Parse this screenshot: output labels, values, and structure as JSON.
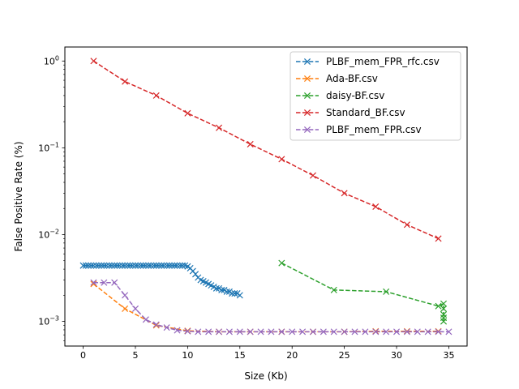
{
  "chart_data": {
    "type": "line",
    "title": "",
    "xlabel": "Size (Kb)",
    "ylabel": "False Positive Rate (%)",
    "xlim": [
      -1.75,
      36.75
    ],
    "ylim": [
      0.00052,
      1.45
    ],
    "y_scale": "log",
    "x_ticks": [
      0,
      5,
      10,
      15,
      20,
      25,
      30,
      35
    ],
    "y_ticks": [
      {
        "value": 0.001,
        "base": "10",
        "exp": "−3"
      },
      {
        "value": 0.01,
        "base": "10",
        "exp": "−2"
      },
      {
        "value": 0.1,
        "base": "10",
        "exp": "−1"
      },
      {
        "value": 1,
        "base": "10",
        "exp": "0"
      }
    ],
    "grid": false,
    "legend_position": "top-right",
    "marker": "x",
    "line_style": "dashed",
    "series": [
      {
        "name": "PLBF_mem_FPR_rfc.csv",
        "color": "#1f77b4",
        "x": [
          0,
          0.25,
          0.5,
          0.75,
          1,
          1.25,
          1.5,
          1.75,
          2,
          2.25,
          2.5,
          2.75,
          3,
          3.25,
          3.5,
          3.75,
          4,
          4.25,
          4.5,
          4.75,
          5,
          5.25,
          5.5,
          5.75,
          6,
          6.25,
          6.5,
          6.75,
          7,
          7.25,
          7.5,
          7.75,
          8,
          8.25,
          8.5,
          8.75,
          9,
          9.25,
          9.5,
          9.75,
          10,
          10.25,
          10.5,
          10.75,
          11,
          11.25,
          11.5,
          11.75,
          12,
          12.25,
          12.5,
          12.75,
          13,
          13.25,
          13.5,
          13.75,
          14,
          14.25,
          14.5,
          14.75,
          15
        ],
        "y": [
          0.0044,
          0.0044,
          0.0044,
          0.0044,
          0.0044,
          0.0044,
          0.0044,
          0.0044,
          0.0044,
          0.0044,
          0.0044,
          0.0044,
          0.0044,
          0.0044,
          0.0044,
          0.0044,
          0.0044,
          0.0044,
          0.0044,
          0.0044,
          0.0044,
          0.0044,
          0.0044,
          0.0044,
          0.0044,
          0.0044,
          0.0044,
          0.0044,
          0.0044,
          0.0044,
          0.0044,
          0.0044,
          0.0044,
          0.0044,
          0.0044,
          0.0044,
          0.0044,
          0.0044,
          0.0044,
          0.0044,
          0.0043,
          0.0041,
          0.0038,
          0.0035,
          0.0032,
          0.003,
          0.0029,
          0.0028,
          0.0027,
          0.0026,
          0.0025,
          0.0024,
          0.0024,
          0.0023,
          0.0023,
          0.0022,
          0.0022,
          0.0021,
          0.0021,
          0.0021,
          0.002
        ]
      },
      {
        "name": "Ada-BF.csv",
        "color": "#ff7f0e",
        "x": [
          1,
          4,
          7,
          10,
          13,
          16,
          19,
          22,
          25,
          28,
          31,
          34
        ],
        "y": [
          0.0027,
          0.0014,
          0.0009,
          0.00078,
          0.00076,
          0.00076,
          0.00076,
          0.00076,
          0.00076,
          0.00077,
          0.00077,
          0.00077
        ]
      },
      {
        "name": "daisy-BF.csv",
        "color": "#2ca02c",
        "x": [
          19,
          24,
          29,
          34,
          34.5,
          34.5,
          34.5,
          34.5,
          34.5
        ],
        "y": [
          0.0047,
          0.0023,
          0.0022,
          0.0015,
          0.0016,
          0.0014,
          0.0012,
          0.0011,
          0.001
        ]
      },
      {
        "name": "Standard_BF.csv",
        "color": "#d62728",
        "x": [
          1,
          4,
          7,
          10,
          13,
          16,
          19,
          22,
          25,
          28,
          31,
          34
        ],
        "y": [
          1.0,
          0.58,
          0.4,
          0.25,
          0.17,
          0.11,
          0.074,
          0.048,
          0.03,
          0.021,
          0.013,
          0.009
        ]
      },
      {
        "name": "PLBF_mem_FPR.csv",
        "color": "#9467bd",
        "x": [
          1,
          2,
          3,
          4,
          5,
          6,
          7,
          8,
          9,
          10,
          11,
          12,
          13,
          14,
          15,
          16,
          17,
          18,
          19,
          20,
          21,
          22,
          23,
          24,
          25,
          26,
          27,
          28,
          29,
          30,
          31,
          32,
          33,
          34,
          35
        ],
        "y": [
          0.0028,
          0.0028,
          0.0028,
          0.002,
          0.0014,
          0.00105,
          0.00092,
          0.00085,
          0.00079,
          0.00077,
          0.00076,
          0.00076,
          0.00076,
          0.00076,
          0.00076,
          0.00076,
          0.00076,
          0.00076,
          0.00076,
          0.00076,
          0.00076,
          0.00076,
          0.00076,
          0.00076,
          0.00076,
          0.00076,
          0.00076,
          0.00076,
          0.00076,
          0.00076,
          0.00076,
          0.00076,
          0.00076,
          0.00076,
          0.00076
        ]
      }
    ]
  }
}
